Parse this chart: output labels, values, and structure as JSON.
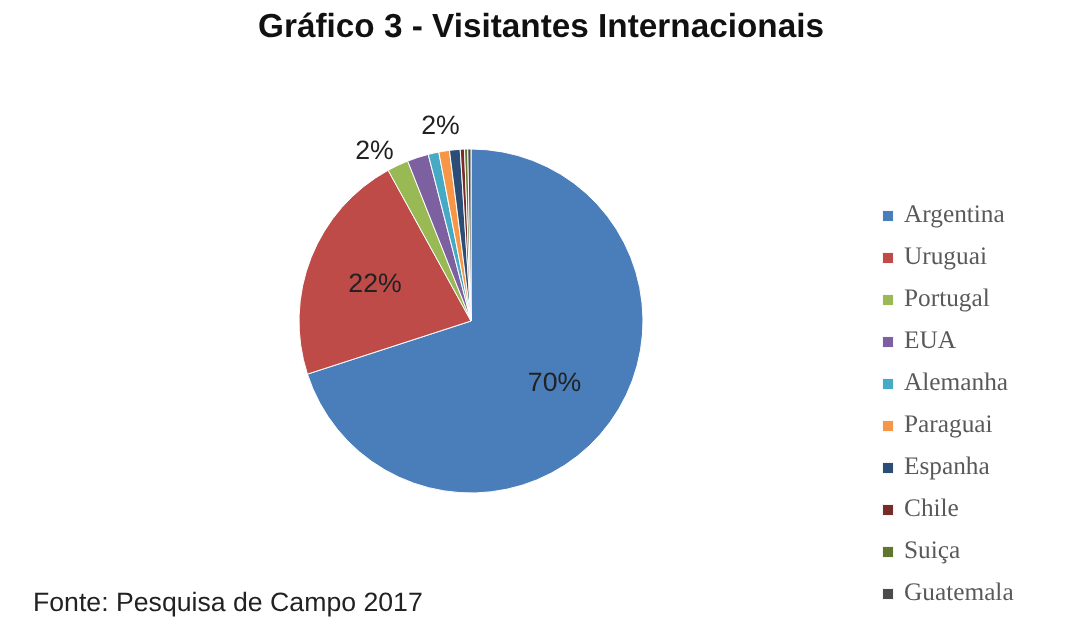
{
  "chart_data": {
    "type": "pie",
    "title": "Gráfico 3 - Visitantes Internacionais",
    "categories": [
      "Argentina",
      "Uruguai",
      "Portugal",
      "EUA",
      "Alemanha",
      "Paraguai",
      "Espanha",
      "Chile",
      "Suiça",
      "Guatemala"
    ],
    "values": [
      70,
      22,
      2,
      2,
      1,
      1,
      1,
      0.4,
      0.3,
      0.3
    ],
    "value_labels": [
      "70%",
      "22%",
      "2%",
      "2%",
      null,
      null,
      null,
      null,
      null,
      null
    ],
    "colors": [
      "#4a7ebb",
      "#be4b48",
      "#98b954",
      "#7d60a0",
      "#46aac5",
      "#f79646",
      "#2c4d75",
      "#772c2a",
      "#5f7530",
      "#4b4b4b"
    ],
    "legend": "right",
    "annotations": [
      "Fonte: Pesquisa de Campo 2017"
    ]
  }
}
